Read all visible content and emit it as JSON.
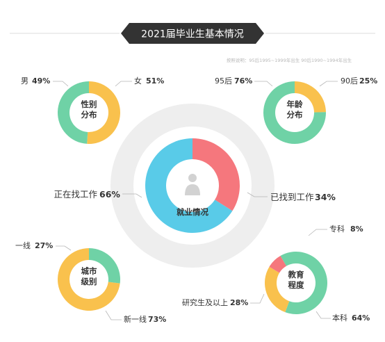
{
  "title": "2021届毕业生基本情况",
  "note": "按照说明：95后1995~1999年出生  90后1990~1994年出生",
  "colors": {
    "green": "#6fd2a6",
    "yellow": "#f9c14d",
    "blue": "#59cbe8",
    "red": "#f5777d",
    "halo": "#eeeeee",
    "leader": "#b5b5b5",
    "banner": "#333333"
  },
  "chart_data": [
    {
      "type": "pie",
      "title": "性别分布",
      "center_lines": [
        "性别",
        "分布"
      ],
      "slices": [
        {
          "label": "女",
          "value": 51,
          "pct_text": "51%",
          "color": "#f9c14d"
        },
        {
          "label": "男",
          "value": 49,
          "pct_text": "49%",
          "color": "#6fd2a6"
        }
      ]
    },
    {
      "type": "pie",
      "title": "年龄分布",
      "center_lines": [
        "年龄",
        "分布"
      ],
      "slices": [
        {
          "label": "90后",
          "value": 25,
          "pct_text": "25%",
          "color": "#f9c14d"
        },
        {
          "label": "95后",
          "value": 76,
          "pct_text": "76%",
          "color": "#6fd2a6"
        }
      ]
    },
    {
      "type": "pie",
      "title": "就业情况",
      "center_lines": [
        "就业情况"
      ],
      "slices": [
        {
          "label": "已找到工作",
          "value": 34,
          "pct_text": "34%",
          "color": "#f5777d"
        },
        {
          "label": "正在找工作",
          "value": 66,
          "pct_text": "66%",
          "color": "#59cbe8"
        }
      ]
    },
    {
      "type": "pie",
      "title": "城市级别",
      "center_lines": [
        "城市",
        "级别"
      ],
      "slices": [
        {
          "label": "新一线",
          "value": 73,
          "pct_text": "73%",
          "color": "#f9c14d"
        },
        {
          "label": "一线",
          "value": 27,
          "pct_text": "27%",
          "color": "#6fd2a6"
        }
      ]
    },
    {
      "type": "pie",
      "title": "教育程度",
      "center_lines": [
        "教育",
        "程度"
      ],
      "slices": [
        {
          "label": "本科",
          "value": 64,
          "pct_text": "64%",
          "color": "#6fd2a6"
        },
        {
          "label": "研究生及以上",
          "value": 28,
          "pct_text": "28%",
          "color": "#f9c14d"
        },
        {
          "label": "专科",
          "value": 8,
          "pct_text": "8%",
          "color": "#f5777d"
        }
      ]
    }
  ]
}
